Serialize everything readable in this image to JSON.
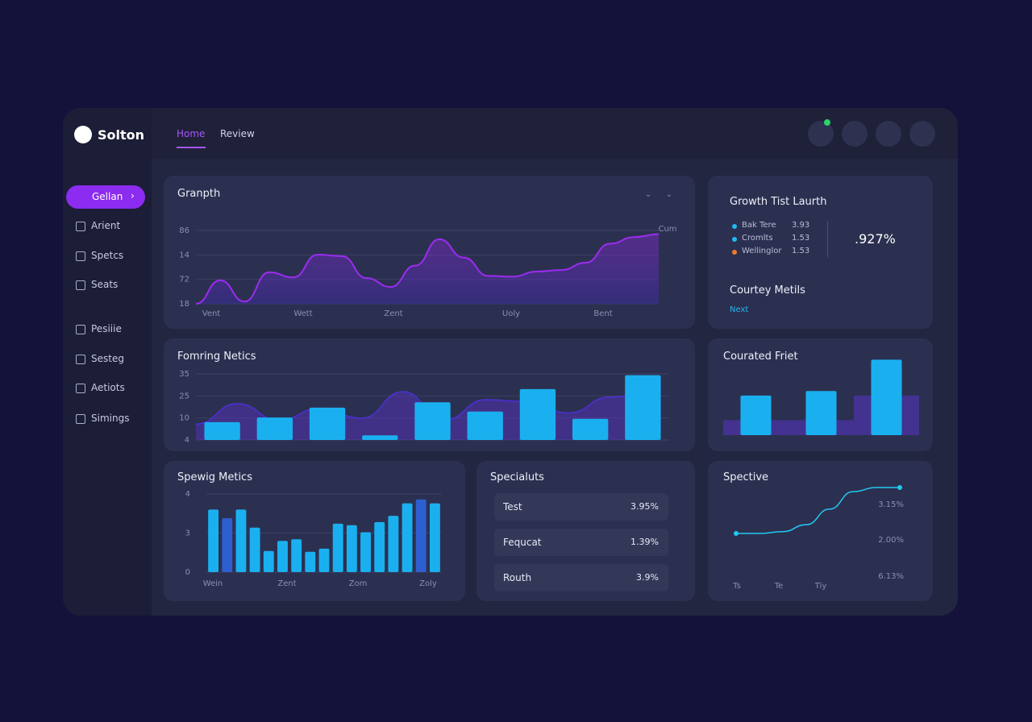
{
  "brand": "Solton",
  "tabs": [
    "Home",
    "Review"
  ],
  "sidebar": {
    "active": "Gellan",
    "items": [
      "Arient",
      "Spetcs",
      "Seats",
      "Pesiiie",
      "Sesteg",
      "Aetiots",
      "Simings"
    ]
  },
  "growth": {
    "type": "area",
    "title": "Granpth",
    "corner_label": "Cum",
    "y_labels": [
      "86",
      "14",
      "72",
      "18"
    ],
    "x_labels": [
      "Vent",
      "Wett",
      "Zent",
      "Uoly",
      "Bent"
    ],
    "ylim": [
      0,
      100
    ],
    "color": "#9b2cf0",
    "values": [
      0,
      32,
      3,
      43,
      36,
      67,
      65,
      35,
      23,
      52,
      88,
      63,
      38,
      37,
      44,
      46,
      56,
      82,
      91,
      95
    ]
  },
  "launch": {
    "title": "Growth Tist Laurth",
    "legend": [
      {
        "name": "Bak Tere",
        "value": "3.93",
        "color": "#22b8f0"
      },
      {
        "name": "Cromlts",
        "value": "1.53",
        "color": "#22b8f0"
      },
      {
        "name": "Wellinglor",
        "value": "1.53",
        "color": "#f07a2c"
      }
    ],
    "big_value": ".927%",
    "subtitle": "Courtey Metils",
    "link": "Next"
  },
  "forming": {
    "type": "bar",
    "title": "Fomring Netics",
    "y_labels": [
      "35",
      "25",
      "10",
      "4"
    ],
    "ylim": [
      0,
      100
    ],
    "color": "#1ab0f0",
    "values": [
      27,
      34,
      49,
      7,
      57,
      43,
      77,
      32,
      98
    ],
    "line_color": "#4a30d8",
    "line_values": [
      24,
      55,
      30,
      48,
      33,
      73,
      30,
      61,
      58,
      41,
      65,
      70
    ]
  },
  "courated": {
    "type": "bar",
    "title": "Courated Friet",
    "ylim": [
      0,
      110
    ],
    "color": "#1ab0f0",
    "values": [
      53,
      59,
      101
    ],
    "area_color": "#4a33a0",
    "area_values": [
      20,
      20,
      53
    ]
  },
  "spewig": {
    "type": "bar",
    "title": "Spewig Metics",
    "y_labels": [
      "4",
      "3",
      "0"
    ],
    "x_labels": [
      "Wein",
      "Zent",
      "Zom",
      "Zoly"
    ],
    "ylim": [
      0,
      100
    ],
    "color": "#1ab0f0",
    "values": [
      80,
      69,
      80,
      57,
      27,
      40,
      42,
      26,
      30,
      62,
      60,
      51,
      64,
      72,
      88,
      93,
      88
    ]
  },
  "specialuts": {
    "title": "Specialuts",
    "rows": [
      [
        "Test",
        "3.95%"
      ],
      [
        "Fequcat",
        "1.39%"
      ],
      [
        "Routh",
        "3.9%"
      ]
    ]
  },
  "spective": {
    "type": "line",
    "title": "Spective",
    "y_labels": [
      "3.15%",
      "2.00%",
      "6.13%"
    ],
    "x_labels": [
      "Ts",
      "Te",
      "Tiy"
    ],
    "ylim": [
      0,
      100
    ],
    "color": "#22c8f0",
    "values": [
      0,
      0,
      4,
      19,
      53,
      91,
      100,
      100
    ]
  }
}
